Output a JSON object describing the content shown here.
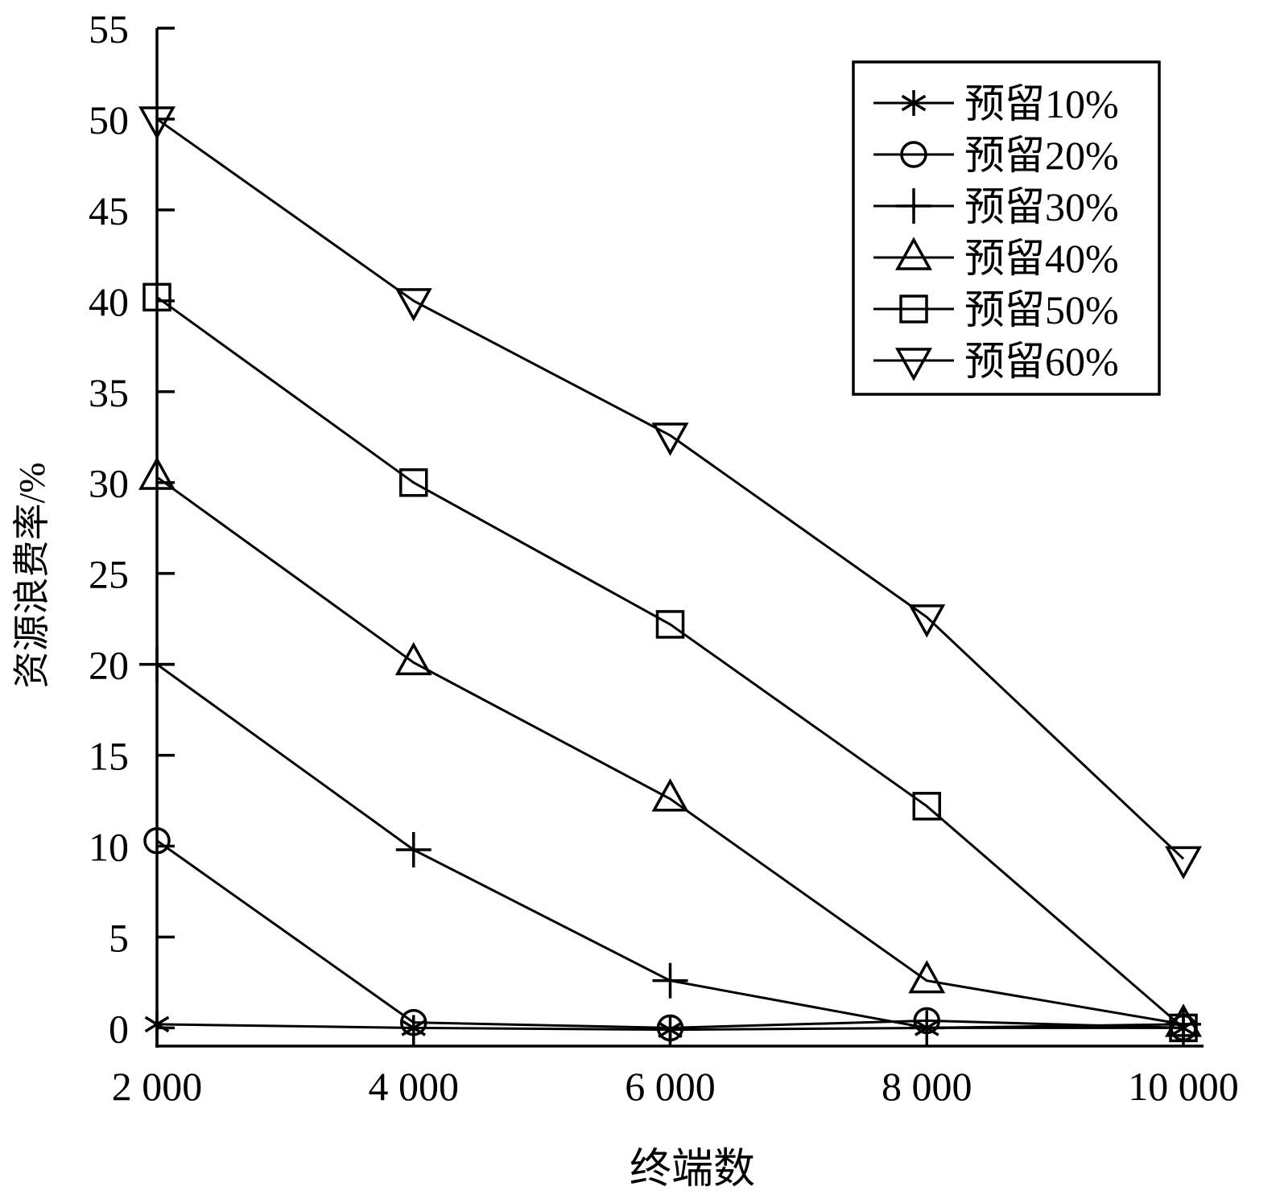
{
  "chart_data": {
    "type": "line",
    "xlabel": "终端数",
    "ylabel": "资源浪费率/%",
    "x": [
      2000,
      4000,
      6000,
      8000,
      10000
    ],
    "x_tick_labels": [
      "2 000",
      "4 000",
      "6 000",
      "8 000",
      "10 000"
    ],
    "xlim": [
      2000,
      10000
    ],
    "ylim": [
      -1,
      55
    ],
    "y_ticks": [
      0,
      5,
      10,
      15,
      20,
      25,
      30,
      35,
      40,
      45,
      50,
      55
    ],
    "y_tick_labels": [
      "0",
      "5",
      "10",
      "15",
      "20",
      "25",
      "30",
      "35",
      "40",
      "45",
      "50",
      "55"
    ],
    "grid": false,
    "legend_position": "top-right",
    "series": [
      {
        "name": "预留10%",
        "marker": "star",
        "values": [
          0.2,
          0.0,
          -0.1,
          0.0,
          0.0
        ]
      },
      {
        "name": "预留20%",
        "marker": "circle",
        "values": [
          10.3,
          0.3,
          0.0,
          0.4,
          0.0
        ]
      },
      {
        "name": "预留30%",
        "marker": "plus",
        "values": [
          20.0,
          9.8,
          2.6,
          0.0,
          0.2
        ]
      },
      {
        "name": "预留40%",
        "marker": "triangle-up",
        "values": [
          30.3,
          20.1,
          12.6,
          2.6,
          0.2
        ]
      },
      {
        "name": "预留50%",
        "marker": "square",
        "values": [
          40.2,
          30.0,
          22.2,
          12.2,
          0.0
        ]
      },
      {
        "name": "预留60%",
        "marker": "triangle-down",
        "values": [
          50.0,
          40.0,
          32.6,
          22.6,
          9.3
        ]
      }
    ]
  }
}
